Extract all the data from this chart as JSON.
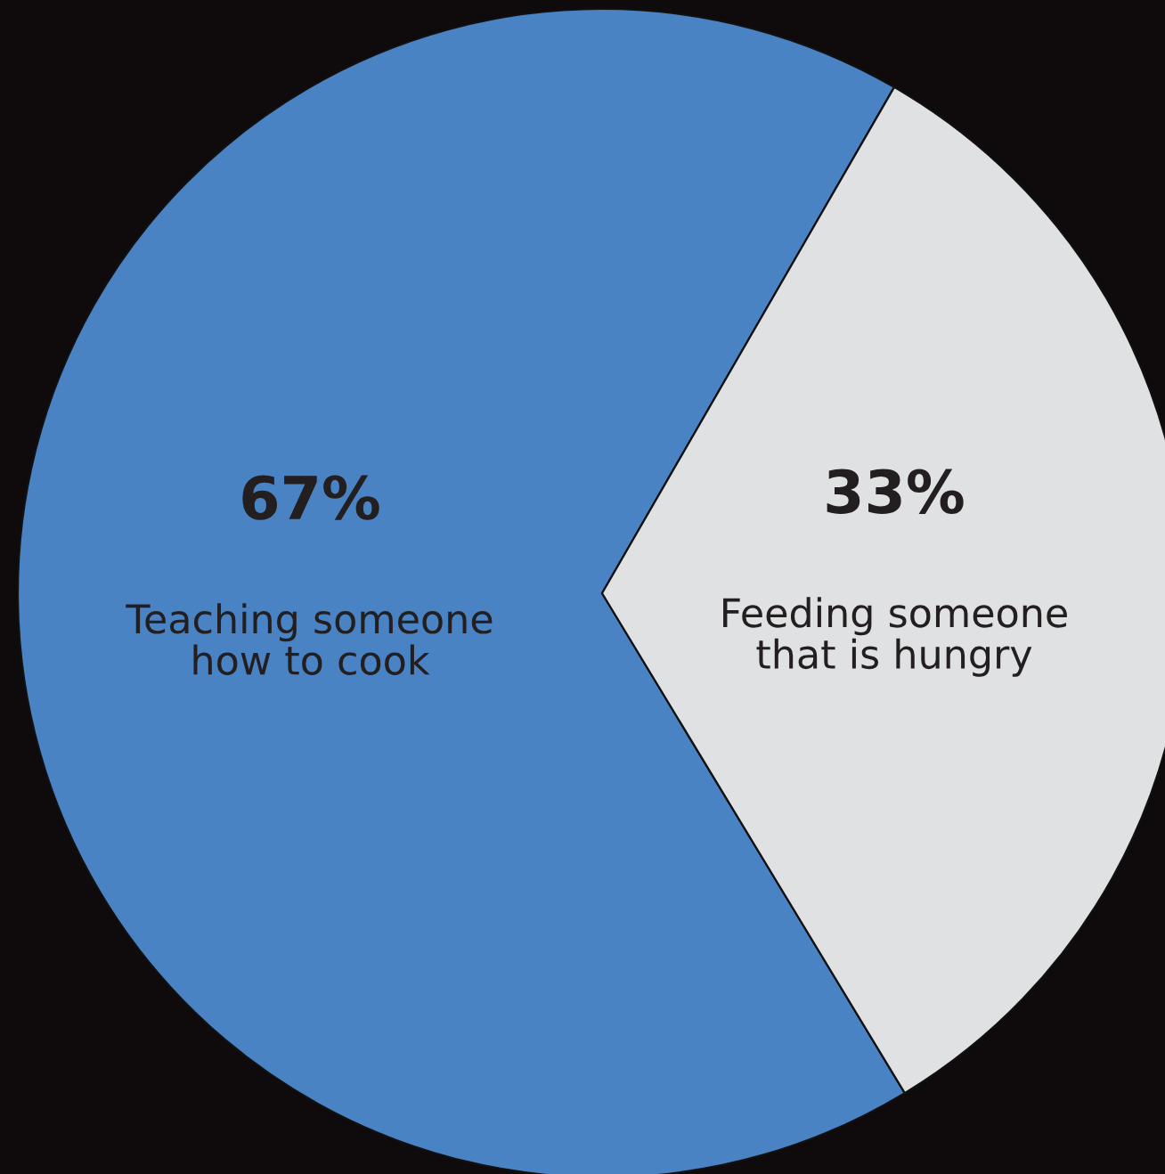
{
  "chart_data": {
    "type": "pie",
    "categories": [
      "Teaching someone\nhow to cook",
      "Feeding someone\nthat is hungry"
    ],
    "values": [
      67,
      33
    ],
    "value_labels": [
      "67%",
      "33%"
    ],
    "colors": [
      "#4a83c4",
      "#e0e1e3"
    ]
  }
}
